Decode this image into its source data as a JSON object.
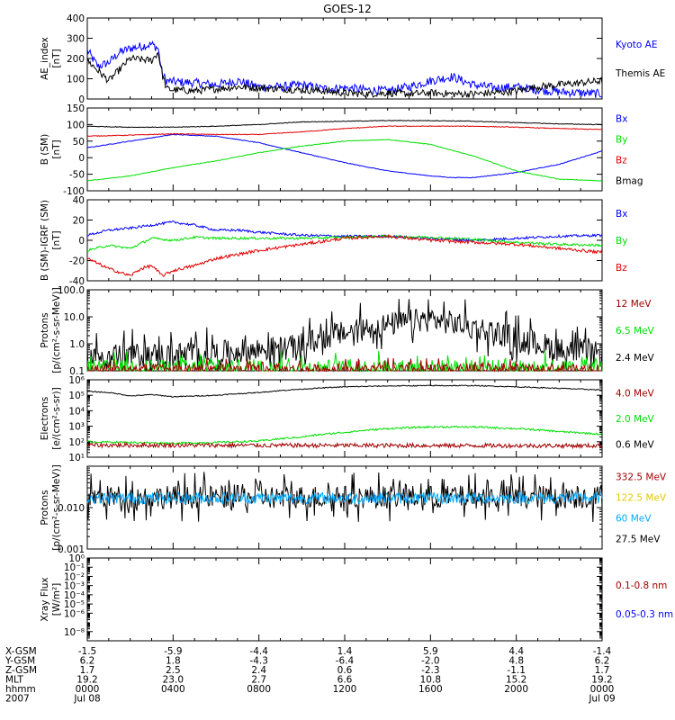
{
  "title": "GOES-12",
  "colors": {
    "black": "#000000",
    "blue": "#0000ff",
    "green": "#00e000",
    "red": "#e00000",
    "darkred": "#a00000",
    "yellow": "#e6c800",
    "cyan": "#00aaff"
  },
  "chart_data": [
    {
      "type": "line",
      "ylabel": [
        "AE_index",
        "[nT]"
      ],
      "scale": "linear",
      "ylim": [
        0,
        400
      ],
      "ticks": [
        "0",
        "100",
        "200",
        "300",
        "400"
      ],
      "tickvals": [
        0,
        100,
        200,
        300,
        400
      ],
      "legend": [
        {
          "label": "Kyoto AE",
          "color": "#0000ff"
        },
        {
          "label": "Themis AE",
          "color": "#000000"
        }
      ],
      "series": [
        {
          "name": "Kyoto AE",
          "color": "#0000ff",
          "noise": 22,
          "x": [
            0,
            0.5,
            1,
            1.5,
            2,
            2.5,
            3,
            3.3,
            3.5,
            3.7,
            4,
            5,
            6,
            7,
            8,
            9,
            10,
            11,
            12,
            13,
            14,
            15,
            16,
            17,
            18,
            19,
            20,
            21,
            22,
            23,
            24
          ],
          "y": [
            240,
            160,
            180,
            230,
            250,
            260,
            270,
            250,
            120,
            90,
            85,
            80,
            70,
            90,
            60,
            60,
            70,
            50,
            55,
            45,
            40,
            60,
            90,
            110,
            70,
            55,
            60,
            45,
            35,
            30,
            25
          ]
        },
        {
          "name": "Themis AE",
          "color": "#000000",
          "noise": 18,
          "x": [
            0,
            1,
            2,
            3,
            3.3,
            3.5,
            3.7,
            4,
            5,
            6,
            7,
            8,
            9,
            10,
            11,
            12,
            13,
            14,
            15,
            16,
            17,
            18,
            19,
            20,
            21,
            22,
            23,
            24
          ],
          "y": [
            190,
            90,
            200,
            190,
            230,
            120,
            50,
            45,
            40,
            50,
            60,
            55,
            50,
            45,
            40,
            30,
            25,
            30,
            25,
            30,
            25,
            25,
            30,
            40,
            60,
            70,
            80,
            90
          ]
        }
      ]
    },
    {
      "type": "line",
      "ylabel": [
        "B (SM)",
        "[nT]"
      ],
      "scale": "linear",
      "ylim": [
        -100,
        150
      ],
      "ticks": [
        "-100",
        "-50",
        "0",
        "50",
        "100",
        "150"
      ],
      "tickvals": [
        -100,
        -50,
        0,
        50,
        100,
        150
      ],
      "legend": [
        {
          "label": "Bx",
          "color": "#0000ff"
        },
        {
          "label": "By",
          "color": "#00e000"
        },
        {
          "label": "Bz",
          "color": "#e00000"
        },
        {
          "label": "Bmag",
          "color": "#000000"
        }
      ],
      "series": [
        {
          "name": "Bx",
          "color": "#0000ff",
          "noise": 1,
          "x": [
            0,
            2,
            4,
            6,
            8,
            10,
            12,
            14,
            16,
            17,
            18,
            20,
            22,
            24
          ],
          "y": [
            30,
            50,
            70,
            65,
            45,
            15,
            -15,
            -40,
            -55,
            -60,
            -60,
            -45,
            -20,
            20
          ]
        },
        {
          "name": "By",
          "color": "#00e000",
          "noise": 1,
          "x": [
            0,
            2,
            4,
            6,
            8,
            10,
            12,
            14,
            16,
            18,
            20,
            22,
            24
          ],
          "y": [
            -70,
            -55,
            -30,
            -10,
            15,
            35,
            50,
            55,
            40,
            5,
            -40,
            -65,
            -70
          ]
        },
        {
          "name": "Bz",
          "color": "#e00000",
          "noise": 1,
          "x": [
            0,
            2,
            4,
            6,
            8,
            10,
            12,
            14,
            16,
            18,
            20,
            22,
            24
          ],
          "y": [
            65,
            68,
            72,
            70,
            70,
            78,
            88,
            95,
            95,
            95,
            92,
            88,
            85
          ]
        },
        {
          "name": "Bmag",
          "color": "#000000",
          "noise": 1,
          "x": [
            0,
            2,
            4,
            6,
            8,
            10,
            12,
            14,
            16,
            18,
            20,
            22,
            24
          ],
          "y": [
            95,
            92,
            92,
            95,
            100,
            108,
            110,
            112,
            112,
            110,
            106,
            102,
            100
          ]
        }
      ]
    },
    {
      "type": "line",
      "ylabel": [
        "B (SM)-IGRF (SM)",
        "[nT]"
      ],
      "scale": "linear",
      "ylim": [
        -40,
        40
      ],
      "ticks": [
        "-40",
        "-20",
        "0",
        "20",
        "40"
      ],
      "tickvals": [
        -40,
        -20,
        0,
        20,
        40
      ],
      "legend": [
        {
          "label": "Bx",
          "color": "#0000ff"
        },
        {
          "label": "By",
          "color": "#00e000"
        },
        {
          "label": "Bz",
          "color": "#e00000"
        }
      ],
      "series": [
        {
          "name": "Bx",
          "color": "#0000ff",
          "noise": 1.2,
          "x": [
            0,
            1,
            2,
            3,
            4,
            5,
            6,
            7,
            8,
            10,
            12,
            14,
            16,
            18,
            20,
            22,
            24
          ],
          "y": [
            5,
            10,
            12,
            15,
            18,
            15,
            10,
            10,
            8,
            5,
            4,
            4,
            2,
            0,
            2,
            4,
            5
          ]
        },
        {
          "name": "By",
          "color": "#00e000",
          "noise": 1.2,
          "x": [
            0,
            1,
            2,
            3,
            4,
            5,
            6,
            8,
            10,
            12,
            14,
            16,
            18,
            20,
            22,
            24
          ],
          "y": [
            -10,
            -5,
            -8,
            2,
            0,
            3,
            2,
            2,
            2,
            3,
            4,
            3,
            1,
            -2,
            -4,
            -5
          ]
        },
        {
          "name": "Bz",
          "color": "#e00000",
          "noise": 1.5,
          "x": [
            0,
            1,
            2,
            2.5,
            3,
            3.5,
            4,
            5,
            6,
            8,
            10,
            12,
            14,
            16,
            18,
            20,
            22,
            24
          ],
          "y": [
            -18,
            -28,
            -35,
            -28,
            -25,
            -35,
            -30,
            -25,
            -18,
            -10,
            -4,
            2,
            4,
            0,
            -2,
            -4,
            -8,
            -12
          ]
        }
      ]
    },
    {
      "type": "line",
      "ylabel": [
        "Protons",
        "[p/(cm²-s-sr-MeV)]"
      ],
      "scale": "log",
      "ylim": [
        0.1,
        100
      ],
      "ticks": [
        "0.1",
        "1.0",
        "10.0",
        "100.0"
      ],
      "tickvals": [
        0.1,
        1,
        10,
        100
      ],
      "legend": [
        {
          "label": "12 MeV",
          "color": "#a00000"
        },
        {
          "label": "6.5 MeV",
          "color": "#00e000"
        },
        {
          "label": "2.4 MeV",
          "color": "#000000"
        }
      ],
      "series": [
        {
          "name": "2.4 MeV",
          "color": "#000000",
          "noise": 0.45,
          "spiky": true,
          "x": [
            0,
            4,
            6,
            8,
            10,
            12,
            14,
            16,
            18,
            20,
            22,
            24
          ],
          "y": [
            0.35,
            0.4,
            0.45,
            0.6,
            0.8,
            2.5,
            5,
            8,
            4,
            1.5,
            0.6,
            0.4
          ]
        },
        {
          "name": "6.5 MeV",
          "color": "#00e000",
          "noise": 0.3,
          "spiky": true,
          "x": [
            0,
            24
          ],
          "y": [
            0.13,
            0.13
          ]
        },
        {
          "name": "12 MeV",
          "color": "#a00000",
          "noise": 0.2,
          "spiky": true,
          "x": [
            0,
            24
          ],
          "y": [
            0.11,
            0.11
          ]
        }
      ]
    },
    {
      "type": "line",
      "ylabel": [
        "Electrons",
        "[e/(cm²-s-sr)]"
      ],
      "scale": "log",
      "ylim": [
        10,
        1000000
      ],
      "ticks": [
        "10¹",
        "10²",
        "10³",
        "10⁴",
        "10⁵",
        "10⁶"
      ],
      "tickvals": [
        10,
        100,
        1000,
        10000,
        100000,
        1000000
      ],
      "legend": [
        {
          "label": "4.0 MeV",
          "color": "#a00000"
        },
        {
          "label": "2.0 MeV",
          "color": "#00e000"
        },
        {
          "label": "0.6 MeV",
          "color": "#000000"
        }
      ],
      "series": [
        {
          "name": "2.0 MeV",
          "color": "#00e000",
          "noise": 0.06,
          "x": [
            0,
            4,
            6,
            8,
            10,
            12,
            14,
            16,
            18,
            20,
            22,
            24
          ],
          "y": [
            100,
            80,
            90,
            110,
            200,
            400,
            700,
            900,
            900,
            700,
            450,
            300
          ]
        },
        {
          "name": "0.6 MeV",
          "color": "#000000",
          "noise": 0.03,
          "x": [
            0,
            1,
            2,
            3,
            4,
            6,
            8,
            10,
            12,
            14,
            16,
            18,
            20,
            22,
            24
          ],
          "y": [
            180000,
            150000,
            90000,
            110000,
            80000,
            100000,
            150000,
            250000,
            350000,
            400000,
            420000,
            420000,
            350000,
            280000,
            220000
          ]
        },
        {
          "name": "4.0 MeV",
          "color": "#a00000",
          "noise": 0.14,
          "x": [
            0,
            24
          ],
          "y": [
            60,
            55
          ]
        }
      ]
    },
    {
      "type": "line",
      "ylabel": [
        "Protons",
        "[p/(cm²-s-sr-MeV)]"
      ],
      "scale": "log",
      "ylim": [
        0.001,
        0.1
      ],
      "ticks": [
        "0.001",
        "0.010",
        ""
      ],
      "tickvals": [
        0.001,
        0.01,
        0.1
      ],
      "legend": [
        {
          "label": "332.5 MeV",
          "color": "#a00000"
        },
        {
          "label": "122.5 MeV",
          "color": "#e6c800"
        },
        {
          "label": "60 MeV",
          "color": "#00aaff"
        },
        {
          "label": "27.5 MeV",
          "color": "#000000"
        }
      ],
      "series": [
        {
          "name": "27.5 MeV",
          "color": "#000000",
          "noise": 0.28,
          "spiky": true,
          "x": [
            0,
            24
          ],
          "y": [
            0.018,
            0.018
          ]
        },
        {
          "name": "60 MeV",
          "color": "#00aaff",
          "noise": 0.14,
          "x": [
            0,
            24
          ],
          "y": [
            0.017,
            0.017
          ]
        }
      ]
    },
    {
      "type": "line",
      "ylabel": [
        "Xray Flux",
        "[W/m²]"
      ],
      "scale": "log",
      "ylim": [
        1e-09,
        1
      ],
      "ticks": [
        "10⁻⁸",
        "10⁻⁶",
        "10⁻⁵",
        "10⁻⁴",
        "10⁻³",
        "10⁻²",
        "10⁻¹",
        "10⁰"
      ],
      "tickvals": [
        1e-08,
        1e-06,
        1e-05,
        0.0001,
        0.001,
        0.01,
        0.1,
        1
      ],
      "legend": [
        {
          "label": "0.1-0.8 nm",
          "color": "#a00000"
        },
        {
          "label": "0.05-0.3 nm",
          "color": "#0000ff"
        }
      ],
      "series": []
    }
  ],
  "x_axis": {
    "range": [
      0,
      24
    ],
    "ephemeris_labels": [
      "X-GSM",
      "Y-GSM",
      "Z-GSM",
      "MLT",
      "hhmm",
      "2007"
    ],
    "ephemeris_rows": [
      [
        "-1.5",
        "-5.9",
        "-4.4",
        "1.4",
        "5.9",
        "4.4",
        "-1.4"
      ],
      [
        "6.2",
        "1.8",
        "-4.3",
        "-6.4",
        "-2.0",
        "4.8",
        "6.2"
      ],
      [
        "1.7",
        "2.5",
        "2.4",
        "0.6",
        "-2.3",
        "-1.1",
        "1.7"
      ],
      [
        "19.2",
        "23.0",
        "2.7",
        "6.6",
        "10.8",
        "15.2",
        "19.2"
      ],
      [
        "0000",
        "0400",
        "0800",
        "1200",
        "1600",
        "2000",
        "0000"
      ],
      [
        "Jul 08",
        "",
        "",
        "",
        "",
        "",
        "Jul 09"
      ]
    ]
  }
}
